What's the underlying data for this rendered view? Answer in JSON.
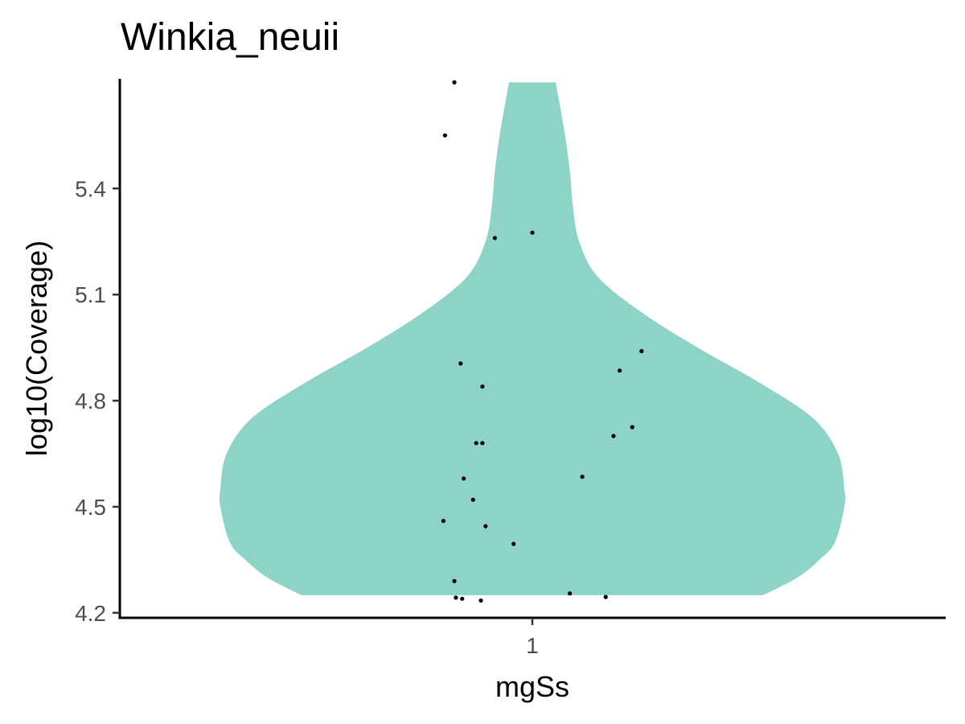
{
  "chart_data": {
    "type": "violin",
    "title": "Winkia_neuii",
    "xlabel": "mgSs",
    "ylabel": "log10(Coverage)",
    "categories": [
      "1"
    ],
    "ylim": [
      4.186,
      5.71
    ],
    "yticks": [
      4.2,
      4.5,
      4.8,
      5.1,
      5.4
    ],
    "ytick_labels": [
      "4.2",
      "4.5",
      "4.8",
      "5.1",
      "5.4"
    ],
    "xtick_labels": [
      "1"
    ],
    "grid": false,
    "legend": "none",
    "fill_color": "#8ed3c7",
    "point_color": "#000000",
    "violin_range": [
      4.25,
      5.7
    ],
    "density_profile": [
      {
        "y": 4.25,
        "w": 0.74
      },
      {
        "y": 4.3,
        "w": 0.85
      },
      {
        "y": 4.35,
        "w": 0.92
      },
      {
        "y": 4.4,
        "w": 0.97
      },
      {
        "y": 4.5,
        "w": 1.0
      },
      {
        "y": 4.55,
        "w": 1.0
      },
      {
        "y": 4.65,
        "w": 0.98
      },
      {
        "y": 4.75,
        "w": 0.9
      },
      {
        "y": 4.85,
        "w": 0.73
      },
      {
        "y": 4.95,
        "w": 0.53
      },
      {
        "y": 5.05,
        "w": 0.35
      },
      {
        "y": 5.15,
        "w": 0.21
      },
      {
        "y": 5.25,
        "w": 0.15
      },
      {
        "y": 5.35,
        "w": 0.13
      },
      {
        "y": 5.45,
        "w": 0.12
      },
      {
        "y": 5.55,
        "w": 0.105
      },
      {
        "y": 5.65,
        "w": 0.085
      },
      {
        "y": 5.7,
        "w": 0.075
      }
    ],
    "points": [
      {
        "jitter": -0.25,
        "y": 5.7
      },
      {
        "jitter": -0.28,
        "y": 5.55
      },
      {
        "jitter": -0.12,
        "y": 5.26
      },
      {
        "jitter": 0.0,
        "y": 5.275
      },
      {
        "jitter": -0.23,
        "y": 4.905
      },
      {
        "jitter": -0.16,
        "y": 4.84
      },
      {
        "jitter": 0.35,
        "y": 4.94
      },
      {
        "jitter": 0.28,
        "y": 4.885
      },
      {
        "jitter": 0.32,
        "y": 4.725
      },
      {
        "jitter": 0.26,
        "y": 4.7
      },
      {
        "jitter": -0.18,
        "y": 4.68
      },
      {
        "jitter": -0.16,
        "y": 4.68
      },
      {
        "jitter": 0.16,
        "y": 4.585
      },
      {
        "jitter": -0.22,
        "y": 4.58
      },
      {
        "jitter": -0.19,
        "y": 4.52
      },
      {
        "jitter": -0.285,
        "y": 4.46
      },
      {
        "jitter": -0.15,
        "y": 4.445
      },
      {
        "jitter": -0.06,
        "y": 4.395
      },
      {
        "jitter": -0.25,
        "y": 4.29
      },
      {
        "jitter": -0.245,
        "y": 4.243
      },
      {
        "jitter": -0.225,
        "y": 4.24
      },
      {
        "jitter": -0.165,
        "y": 4.235
      },
      {
        "jitter": 0.12,
        "y": 4.255
      },
      {
        "jitter": 0.235,
        "y": 4.245
      }
    ]
  }
}
